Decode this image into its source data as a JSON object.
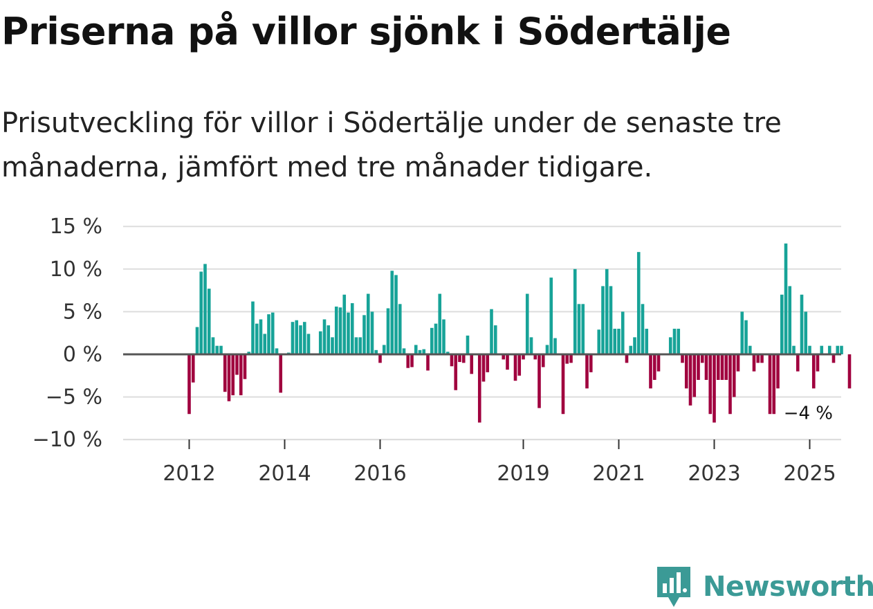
{
  "header": {
    "title": "Priserna på villor sjönk i Södertälje",
    "subtitle": "Prisutveckling för villor i Södertälje under de senaste tre månaderna, jämfört med tre månader tidigare."
  },
  "brand": {
    "name": "Newsworthy"
  },
  "colors": {
    "positive": "#17a398",
    "negative": "#a0003e",
    "grid": "#dddddd",
    "zero": "#555555"
  },
  "chart_data": {
    "type": "bar",
    "title": "Priserna på villor sjönk i Södertälje",
    "xlabel": "",
    "ylabel": "",
    "ylim": [
      -10,
      15
    ],
    "yticks": [
      15,
      10,
      5,
      0,
      -5,
      -10
    ],
    "ytick_labels": [
      "15 %",
      "10 %",
      "5 %",
      "0 %",
      "−5 %",
      "−10 %"
    ],
    "x_start": "2011-05",
    "frequency": "monthly",
    "xticks": [
      {
        "label": "2012",
        "index": 8
      },
      {
        "label": "2014",
        "index": 32
      },
      {
        "label": "2016",
        "index": 56
      },
      {
        "label": "2019",
        "index": 92
      },
      {
        "label": "2021",
        "index": 116
      },
      {
        "label": "2023",
        "index": 140
      },
      {
        "label": "2025",
        "index": 164
      }
    ],
    "end_label": "−4 %",
    "values": [
      0,
      0,
      0,
      0,
      0,
      0,
      0,
      0,
      -7,
      -3.3,
      3.2,
      9.7,
      10.6,
      7.7,
      2.0,
      1.0,
      1.0,
      -4.4,
      -5.5,
      -4.8,
      -2.4,
      -4.8,
      -2.9,
      0.3,
      6.2,
      3.6,
      4.1,
      2.4,
      4.7,
      4.9,
      0.7,
      -4.5,
      0,
      0.2,
      3.8,
      4.0,
      3.4,
      3.8,
      2.4,
      0.1,
      0,
      2.7,
      4.1,
      3.4,
      2.0,
      5.6,
      5.5,
      7.0,
      4.9,
      6.0,
      2.0,
      2.0,
      4.6,
      7.1,
      5.0,
      0.5,
      -1.0,
      1.1,
      5.4,
      9.8,
      9.3,
      5.9,
      0.7,
      -1.6,
      -1.5,
      1.1,
      0.5,
      0.6,
      -1.9,
      3.1,
      3.6,
      7.1,
      4.1,
      0.3,
      -1.4,
      -4.2,
      -0.9,
      -1.0,
      2.2,
      -2.3,
      0,
      -8.0,
      -3.2,
      -2.1,
      5.3,
      3.4,
      0.1,
      -0.6,
      -1.8,
      0,
      -3.1,
      -2.5,
      -0.6,
      7.1,
      2.0,
      -0.6,
      -6.3,
      -1.5,
      1.1,
      9.0,
      1.9,
      0,
      -7.0,
      -1.1,
      -1.0,
      10.0,
      5.9,
      5.9,
      -4.0,
      -2.1,
      0,
      2.9,
      8.0,
      10.0,
      8.0,
      3.0,
      3.0,
      5.0,
      -1.0,
      1.0,
      2.0,
      12.0,
      5.9,
      3.0,
      -4.0,
      -3.0,
      -2.0,
      0,
      0,
      2.0,
      3.0,
      3.0,
      -1.0,
      -4.0,
      -6.0,
      -5.0,
      -3.0,
      -1.0,
      -3.0,
      -7.0,
      -8.0,
      -3.0,
      -3.0,
      -3.0,
      -7.0,
      -5.0,
      -2.0,
      5.0,
      4.0,
      1.0,
      -2.0,
      -1.0,
      -1.0,
      0,
      -7.0,
      -7.0,
      -4.0,
      7.0,
      13.0,
      8.0,
      1.0,
      -2.0,
      7.0,
      5.0,
      1.0,
      -4.0,
      -2.0,
      1.0,
      0,
      1.0,
      -1.0,
      1.0,
      1.0,
      0,
      -4.0
    ]
  }
}
